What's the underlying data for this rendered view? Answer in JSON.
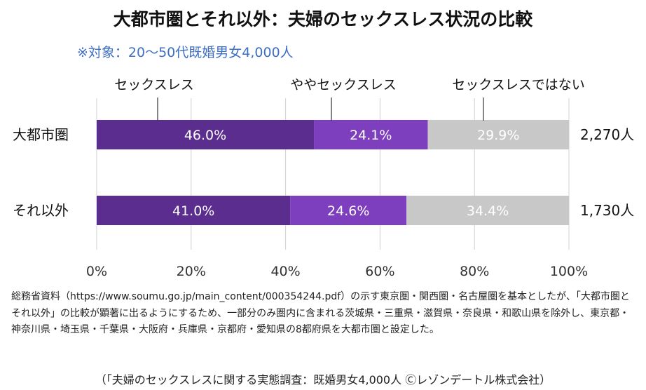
{
  "title": "大都市圏とそれ以外：夫婦のセックスレス状況の比較",
  "subtitle": "※対象：20～50代既婚男女4,000人",
  "chart_data": {
    "type": "bar",
    "orientation": "horizontal",
    "stacked": true,
    "categories": [
      "大都市圏",
      "それ以外"
    ],
    "series": [
      {
        "name": "セックスレス",
        "values": [
          46.0,
          41.0
        ],
        "labels": [
          "46.0%",
          "41.0%"
        ],
        "color": "#5b2d8e"
      },
      {
        "name": "ややセックスレス",
        "values": [
          24.1,
          24.6
        ],
        "labels": [
          "24.1%",
          "24.6%"
        ],
        "color": "#7e3fbf"
      },
      {
        "name": "セックスレスではない",
        "values": [
          29.9,
          34.4
        ],
        "labels": [
          "29.9%",
          "34.4%"
        ],
        "color": "#c8c8c8"
      }
    ],
    "totals": [
      "2,270人",
      "1,730人"
    ],
    "x_ticks": [
      "0%",
      "20%",
      "40%",
      "60%",
      "80%",
      "100%"
    ],
    "xlim": [
      0,
      100
    ],
    "grid": true,
    "legend": "callout labels above top bar"
  },
  "note": "総務省資料（https://www.soumu.go.jp/main_content/000354244.pdf）の示す東京圏・関西圏・名古屋圏を基本としたが、「大都市圏とそれ以外」の比較が顕著に出るようにするため、一部分のみ圏内に含まれる茨城県・三重県・滋賀県・奈良県・和歌山県を除外し、東京都・神奈川県・埼玉県・千葉県・大阪府・兵庫県・京都府・愛知県の8都府県を大都市圏と設定した。",
  "source": "（「夫婦のセックスレスに関する実態調査：既婚男女4,000人 Ⓒレゾンデートルⓒ株式会社）"
}
